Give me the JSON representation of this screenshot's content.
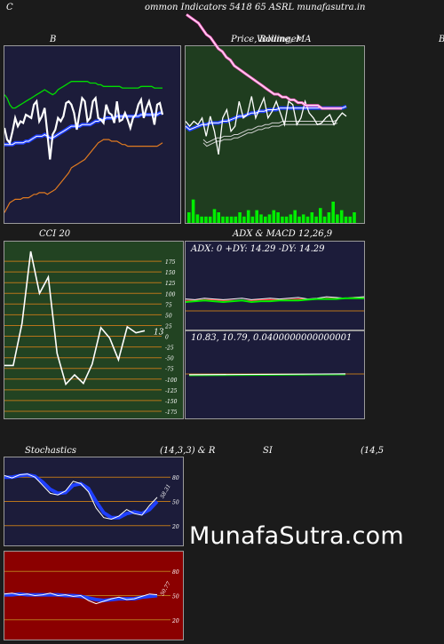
{
  "header": {
    "left_char": "C",
    "title": "ommon  Indicators 5418",
    "symbol": "65 ASRL  munafasutra.in"
  },
  "panels": {
    "bollinger": {
      "title": "B"
    },
    "price": {
      "title_a": "Price,",
      "title_b": "Volume,",
      "title_c": "MA",
      "title_overlap": "Bollinger",
      "edge_char": "B"
    },
    "cci": {
      "title": "CCI 20",
      "last_label": "13"
    },
    "adx": {
      "title": "ADX  & MACD 12,26,9",
      "readout": "ADX: 0  +DY: 14.29 -DY: 14.29"
    },
    "macd": {
      "readout": "10.83,  10.79,  0.0400000000000001"
    },
    "stoch": {
      "title_a": "Stochastics",
      "title_b": "(14,3,3) & R",
      "title_c": "SI",
      "title_d": "(14,5",
      "last_label": "58.31"
    },
    "rsi": {
      "last_label": "50.77"
    }
  },
  "watermark": "MunafaSutra.com",
  "colors": {
    "bg": "#1b1b1b",
    "navy_panel": "#1c1c3a",
    "green_panel": "#1f3d1f",
    "cci_panel": "#224322",
    "rsi_panel": "#8b0000",
    "blue_line": "#1f3fff",
    "green_line": "#00dd00",
    "orange_line": "#e07a20",
    "grid_orange": "#b8741a"
  },
  "chart_data": [
    {
      "type": "line",
      "name": "bollinger",
      "x": [
        1,
        2,
        3,
        4,
        5,
        6,
        7,
        8,
        9,
        10,
        11,
        12,
        13,
        14,
        15,
        16,
        17,
        18,
        19,
        20,
        21,
        22,
        23,
        24,
        25,
        26,
        27,
        28,
        29,
        30,
        31,
        32,
        33,
        34,
        35,
        36,
        37,
        38,
        39,
        40,
        41,
        42,
        43,
        44,
        45,
        46,
        47,
        48,
        49,
        50,
        51,
        52,
        53,
        54,
        55,
        56,
        57,
        58,
        59,
        60
      ],
      "series": [
        {
          "values": [
            0.54,
            0.47,
            0.45,
            0.52,
            0.6,
            0.55,
            0.58,
            0.57,
            0.62,
            0.61,
            0.6,
            0.68,
            0.7,
            0.58,
            0.61,
            0.66,
            0.51,
            0.35,
            0.5,
            0.53,
            0.6,
            0.58,
            0.61,
            0.69,
            0.7,
            0.68,
            0.63,
            0.53,
            0.63,
            0.72,
            0.7,
            0.58,
            0.6,
            0.7,
            0.72,
            0.6,
            0.59,
            0.57,
            0.68,
            0.63,
            0.62,
            0.57,
            0.7,
            0.58,
            0.59,
            0.63,
            0.59,
            0.54,
            0.6,
            0.62,
            0.68,
            0.71,
            0.6,
            0.66,
            0.7,
            0.64,
            0.56,
            0.68,
            0.69,
            0.62
          ]
        },
        {
          "values": [
            0.44,
            0.44,
            0.44,
            0.44,
            0.45,
            0.45,
            0.45,
            0.45,
            0.46,
            0.46,
            0.47,
            0.48,
            0.49,
            0.49,
            0.49,
            0.5,
            0.49,
            0.48,
            0.48,
            0.49,
            0.5,
            0.51,
            0.52,
            0.53,
            0.54,
            0.55,
            0.55,
            0.55,
            0.55,
            0.56,
            0.56,
            0.56,
            0.56,
            0.57,
            0.58,
            0.58,
            0.59,
            0.59,
            0.6,
            0.6,
            0.6,
            0.6,
            0.61,
            0.61,
            0.61,
            0.61,
            0.61,
            0.61,
            0.61,
            0.61,
            0.61,
            0.62,
            0.62,
            0.62,
            0.62,
            0.62,
            0.62,
            0.62,
            0.63,
            0.63
          ]
        },
        {
          "values": [
            0.74,
            0.72,
            0.68,
            0.66,
            0.66,
            0.67,
            0.68,
            0.69,
            0.7,
            0.71,
            0.72,
            0.73,
            0.74,
            0.75,
            0.76,
            0.77,
            0.76,
            0.75,
            0.74,
            0.75,
            0.77,
            0.78,
            0.79,
            0.8,
            0.81,
            0.82,
            0.82,
            0.82,
            0.82,
            0.82,
            0.82,
            0.82,
            0.81,
            0.81,
            0.81,
            0.8,
            0.8,
            0.79,
            0.79,
            0.79,
            0.79,
            0.79,
            0.79,
            0.79,
            0.78,
            0.78,
            0.78,
            0.78,
            0.78,
            0.78,
            0.78,
            0.79,
            0.79,
            0.79,
            0.79,
            0.79,
            0.78,
            0.78,
            0.78,
            0.78
          ]
        },
        {
          "values": [
            0.03,
            0.06,
            0.09,
            0.1,
            0.11,
            0.11,
            0.11,
            0.12,
            0.12,
            0.12,
            0.13,
            0.14,
            0.14,
            0.15,
            0.15,
            0.15,
            0.14,
            0.15,
            0.16,
            0.17,
            0.19,
            0.21,
            0.23,
            0.25,
            0.27,
            0.3,
            0.31,
            0.32,
            0.33,
            0.34,
            0.35,
            0.37,
            0.39,
            0.41,
            0.43,
            0.45,
            0.46,
            0.47,
            0.47,
            0.47,
            0.46,
            0.46,
            0.46,
            0.45,
            0.44,
            0.44,
            0.43,
            0.43,
            0.43,
            0.43,
            0.43,
            0.43,
            0.43,
            0.43,
            0.43,
            0.43,
            0.43,
            0.43,
            0.44,
            0.45
          ]
        }
      ]
    },
    {
      "type": "line",
      "name": "price-volume-ma",
      "x": [
        1,
        2,
        3,
        4,
        5,
        6,
        7,
        8,
        9,
        10,
        11,
        12,
        13,
        14,
        15,
        16,
        17,
        18,
        19,
        20,
        21,
        22,
        23,
        24,
        25,
        26,
        27,
        28,
        29,
        30,
        31,
        32,
        33,
        34,
        35,
        36,
        37,
        38,
        39,
        40
      ],
      "series": [
        {
          "values": [
            0.58,
            0.55,
            0.58,
            0.56,
            0.6,
            0.49,
            0.61,
            0.52,
            0.38,
            0.6,
            0.65,
            0.52,
            0.55,
            0.7,
            0.6,
            0.62,
            0.73,
            0.6,
            0.66,
            0.72,
            0.6,
            0.64,
            0.7,
            0.63,
            0.56,
            0.7,
            0.68,
            0.56,
            0.6,
            0.7,
            0.63,
            0.6,
            0.56,
            0.57,
            0.6,
            0.62,
            0.56,
            0.6,
            0.63,
            0.61
          ]
        },
        {
          "values": [
            0.55,
            0.53,
            0.54,
            0.55,
            0.56,
            0.56,
            0.57,
            0.57,
            0.57,
            0.58,
            0.58,
            0.59,
            0.6,
            0.61,
            0.61,
            0.62,
            0.63,
            0.63,
            0.64,
            0.64,
            0.65,
            0.65,
            0.65,
            0.66,
            0.66,
            0.66,
            0.66,
            0.66,
            0.66,
            0.66,
            0.66,
            0.66,
            0.66,
            0.66,
            0.66,
            0.66,
            0.66,
            0.66,
            0.66,
            0.67
          ]
        },
        {
          "values": [
            0.98,
            0.97,
            0.96,
            0.95,
            0.93,
            0.91,
            0.9,
            0.88,
            0.86,
            0.85,
            0.83,
            0.82,
            0.8,
            0.79,
            0.78,
            0.77,
            0.76,
            0.75,
            0.74,
            0.73,
            0.72,
            0.71,
            0.7,
            0.7,
            0.69,
            0.69,
            0.68,
            0.68,
            0.67,
            0.67,
            0.66,
            0.66,
            0.66,
            0.66,
            0.65,
            0.65,
            0.65,
            0.65,
            0.65,
            0.65
          ]
        },
        {
          "values": [
            0.1,
            0.22,
            0.08,
            0.06,
            0.06,
            0.06,
            0.13,
            0.1,
            0.06,
            0.06,
            0.06,
            0.06,
            0.1,
            0.06,
            0.12,
            0.06,
            0.12,
            0.08,
            0.06,
            0.08,
            0.12,
            0.1,
            0.06,
            0.06,
            0.08,
            0.12,
            0.06,
            0.08,
            0.06,
            0.1,
            0.06,
            0.14,
            0.06,
            0.1,
            0.2,
            0.08,
            0.12,
            0.06,
            0.06,
            0.1
          ]
        }
      ]
    },
    {
      "type": "line",
      "name": "cci",
      "ylim": [
        -175,
        200
      ],
      "yticks": [
        175,
        150,
        125,
        100,
        75,
        50,
        25,
        0,
        -25,
        -50,
        -75,
        -100,
        -125,
        -150,
        -175
      ],
      "values": [
        -68,
        -68,
        30,
        198,
        100,
        138,
        -40,
        -112,
        -90,
        -110,
        -65,
        20,
        -4,
        -55,
        22,
        8,
        13
      ]
    },
    {
      "type": "line",
      "name": "adx-macd",
      "series": [
        {
          "values": [
            0.35,
            0.34,
            0.36,
            0.35,
            0.34,
            0.35,
            0.36,
            0.34,
            0.35,
            0.36,
            0.35,
            0.36,
            0.37,
            0.35,
            0.36,
            0.38,
            0.37,
            0.36,
            0.37,
            0.38
          ]
        },
        {
          "values": [
            0.33,
            0.33,
            0.34,
            0.34,
            0.33,
            0.33,
            0.33,
            0.33,
            0.34,
            0.34,
            0.34,
            0.34,
            0.35,
            0.35,
            0.35,
            0.36,
            0.36,
            0.36,
            0.37,
            0.37
          ]
        },
        {
          "values": [
            0.31,
            0.32,
            0.33,
            0.32,
            0.31,
            0.32,
            0.33,
            0.31,
            0.32,
            0.32,
            0.33,
            0.33,
            0.33,
            0.34,
            0.35,
            0.35,
            0.35,
            0.36,
            0.36,
            0.36
          ]
        }
      ]
    },
    {
      "type": "line",
      "name": "stochastics",
      "ylim": [
        0,
        100
      ],
      "yticks": [
        80,
        50,
        20
      ],
      "series": [
        {
          "values": [
            82,
            79,
            83,
            84,
            80,
            70,
            60,
            58,
            63,
            75,
            72,
            62,
            42,
            30,
            28,
            32,
            40,
            35,
            33,
            45,
            55
          ]
        },
        {
          "values": [
            80,
            80,
            82,
            83,
            81,
            74,
            65,
            60,
            61,
            70,
            72,
            66,
            50,
            36,
            30,
            30,
            35,
            37,
            35,
            40,
            50
          ]
        }
      ]
    },
    {
      "type": "line",
      "name": "rsi",
      "ylim": [
        0,
        100
      ],
      "yticks": [
        80,
        50,
        20
      ],
      "series": [
        {
          "values": [
            52,
            53,
            51,
            52,
            50,
            51,
            53,
            50,
            51,
            49,
            50,
            44,
            40,
            43,
            46,
            48,
            45,
            46,
            49,
            52,
            51
          ]
        },
        {
          "values": [
            51,
            51,
            52,
            51,
            51,
            51,
            51,
            51,
            50,
            50,
            49,
            47,
            45,
            44,
            45,
            46,
            46,
            46,
            48,
            49,
            50
          ]
        }
      ]
    }
  ]
}
